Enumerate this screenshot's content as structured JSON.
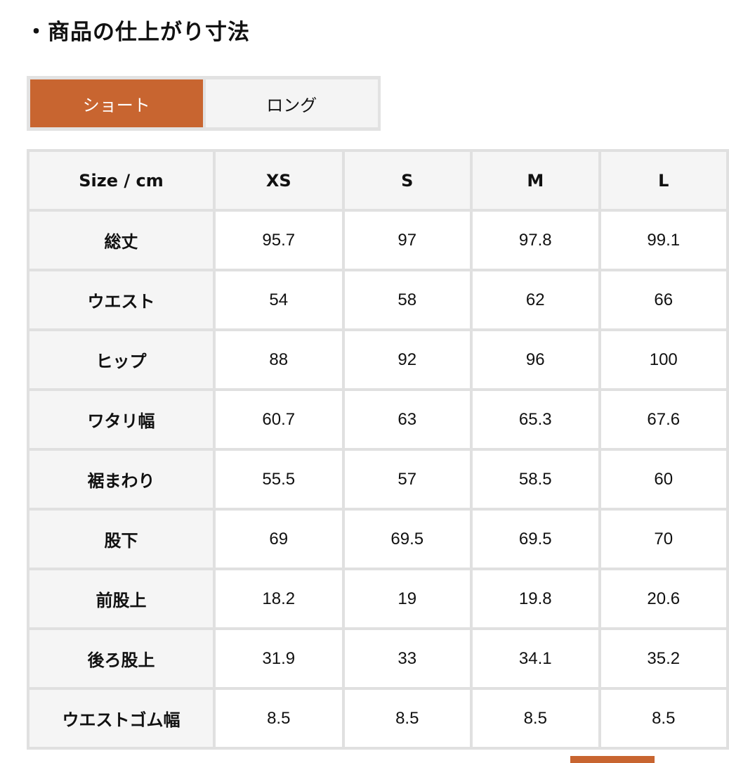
{
  "title": "・商品の仕上がり寸法",
  "tabs": [
    {
      "label": "ショート",
      "active": true
    },
    {
      "label": "ロング",
      "active": false
    }
  ],
  "accent_color": "#c86530",
  "table": {
    "headers": [
      "Size / cm",
      "XS",
      "S",
      "M",
      "L"
    ],
    "rows": [
      {
        "label": "総丈",
        "values": [
          "95.7",
          "97",
          "97.8",
          "99.1"
        ]
      },
      {
        "label": "ウエスト",
        "values": [
          "54",
          "58",
          "62",
          "66"
        ]
      },
      {
        "label": "ヒップ",
        "values": [
          "88",
          "92",
          "96",
          "100"
        ]
      },
      {
        "label": "ワタリ幅",
        "values": [
          "60.7",
          "63",
          "65.3",
          "67.6"
        ]
      },
      {
        "label": "裾まわり",
        "values": [
          "55.5",
          "57",
          "58.5",
          "60"
        ]
      },
      {
        "label": "股下",
        "values": [
          "69",
          "69.5",
          "69.5",
          "70"
        ]
      },
      {
        "label": "前股上",
        "values": [
          "18.2",
          "19",
          "19.8",
          "20.6"
        ]
      },
      {
        "label": "後ろ股上",
        "values": [
          "31.9",
          "33",
          "34.1",
          "35.2"
        ]
      },
      {
        "label": "ウエストゴム幅",
        "values": [
          "8.5",
          "8.5",
          "8.5",
          "8.5"
        ]
      }
    ]
  }
}
